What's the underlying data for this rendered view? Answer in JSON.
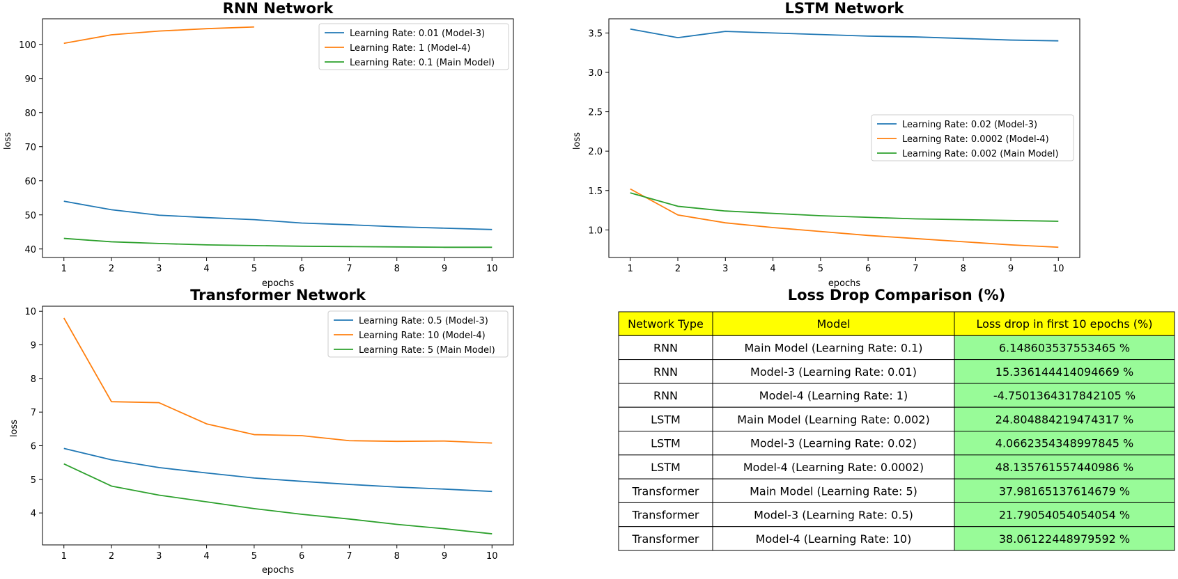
{
  "colors": {
    "series1": "#1f77b4",
    "series2": "#ff7f0e",
    "series3": "#2ca02c",
    "header_bg": "#ffff00",
    "value_bg": "#98fb98"
  },
  "chart_data": [
    {
      "type": "line",
      "title": "RNN Network",
      "xlabel": "epochs",
      "ylabel": "loss",
      "x": [
        1,
        2,
        3,
        4,
        5,
        6,
        7,
        8,
        9,
        10
      ],
      "xlim": [
        0.55,
        10.45
      ],
      "ylim": [
        37.5,
        107.5
      ],
      "yticks": [
        40,
        50,
        60,
        70,
        80,
        90,
        100
      ],
      "legend_position": "upper right",
      "series": [
        {
          "name": "Learning Rate: 0.01 (Model-3)",
          "color": "#1f77b4",
          "values": [
            54.0,
            51.5,
            49.9,
            49.2,
            48.6,
            47.6,
            47.1,
            46.5,
            46.1,
            45.7
          ]
        },
        {
          "name": "Learning Rate: 1 (Model-4)",
          "color": "#ff7f0e",
          "x": [
            1,
            2,
            3,
            4,
            5
          ],
          "values": [
            100.3,
            102.8,
            103.9,
            104.6,
            105.1
          ]
        },
        {
          "name": "Learning Rate: 0.1 (Main Model)",
          "color": "#2ca02c",
          "values": [
            43.1,
            42.1,
            41.6,
            41.2,
            41.0,
            40.8,
            40.7,
            40.6,
            40.5,
            40.5
          ]
        }
      ]
    },
    {
      "type": "line",
      "title": "LSTM Network",
      "xlabel": "epochs",
      "ylabel": "loss",
      "x": [
        1,
        2,
        3,
        4,
        5,
        6,
        7,
        8,
        9,
        10
      ],
      "xlim": [
        0.55,
        10.45
      ],
      "ylim": [
        0.65,
        3.68
      ],
      "yticks": [
        1.0,
        1.5,
        2.0,
        2.5,
        3.0,
        3.5
      ],
      "legend_position": "center right",
      "series": [
        {
          "name": "Learning Rate: 0.02 (Model-3)",
          "color": "#1f77b4",
          "values": [
            3.55,
            3.44,
            3.52,
            3.5,
            3.48,
            3.46,
            3.45,
            3.43,
            3.41,
            3.4
          ]
        },
        {
          "name": "Learning Rate: 0.0002 (Model-4)",
          "color": "#ff7f0e",
          "values": [
            1.52,
            1.19,
            1.09,
            1.03,
            0.98,
            0.93,
            0.89,
            0.85,
            0.81,
            0.78
          ]
        },
        {
          "name": "Learning Rate: 0.002 (Main Model)",
          "color": "#2ca02c",
          "values": [
            1.47,
            1.3,
            1.24,
            1.21,
            1.18,
            1.16,
            1.14,
            1.13,
            1.12,
            1.11
          ]
        }
      ]
    },
    {
      "type": "line",
      "title": "Transformer Network",
      "xlabel": "epochs",
      "ylabel": "loss",
      "x": [
        1,
        2,
        3,
        4,
        5,
        6,
        7,
        8,
        9,
        10
      ],
      "xlim": [
        0.55,
        10.45
      ],
      "ylim": [
        3.05,
        10.15
      ],
      "yticks": [
        4,
        5,
        6,
        7,
        8,
        9,
        10
      ],
      "legend_position": "upper right",
      "series": [
        {
          "name": "Learning Rate: 0.5 (Model-3)",
          "color": "#1f77b4",
          "values": [
            5.92,
            5.58,
            5.35,
            5.19,
            5.04,
            4.94,
            4.85,
            4.77,
            4.71,
            4.64
          ]
        },
        {
          "name": "Learning Rate: 10 (Model-4)",
          "color": "#ff7f0e",
          "values": [
            9.8,
            7.31,
            7.28,
            6.65,
            6.33,
            6.3,
            6.15,
            6.13,
            6.14,
            6.08
          ]
        },
        {
          "name": "Learning Rate: 5 (Main Model)",
          "color": "#2ca02c",
          "values": [
            5.46,
            4.8,
            4.53,
            4.33,
            4.13,
            3.96,
            3.82,
            3.66,
            3.53,
            3.38
          ]
        }
      ]
    },
    {
      "type": "table",
      "title": "Loss Drop Comparison (%)",
      "columns": [
        "Network Type",
        "Model",
        "Loss drop in first 10 epochs (%)"
      ],
      "rows": [
        [
          "RNN",
          "Main Model (Learning Rate: 0.1)",
          "6.148603537553465 %"
        ],
        [
          "RNN",
          "Model-3 (Learning Rate: 0.01)",
          "15.336144414094669 %"
        ],
        [
          "RNN",
          "Model-4 (Learning Rate: 1)",
          "-4.7501364317842105 %"
        ],
        [
          "LSTM",
          "Main Model (Learning Rate: 0.002)",
          "24.804884219474317 %"
        ],
        [
          "LSTM",
          "Model-3 (Learning Rate: 0.02)",
          "4.0662354348997845 %"
        ],
        [
          "LSTM",
          "Model-4 (Learning Rate: 0.0002)",
          "48.135761557440986 %"
        ],
        [
          "Transformer",
          "Main Model (Learning Rate: 5)",
          "37.98165137614679 %"
        ],
        [
          "Transformer",
          "Model-3 (Learning Rate: 0.5)",
          "21.79054054054054 %"
        ],
        [
          "Transformer",
          "Model-4 (Learning Rate: 10)",
          "38.06122448979592 %"
        ]
      ]
    }
  ]
}
